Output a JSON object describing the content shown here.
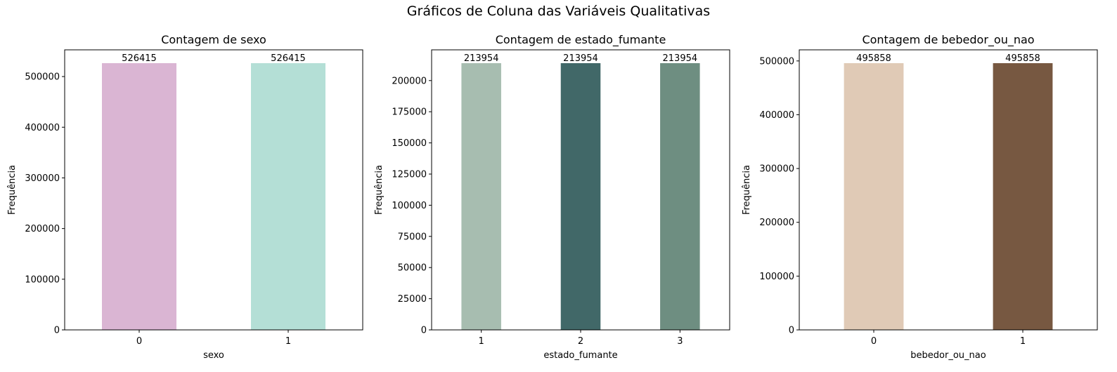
{
  "figure": {
    "suptitle": "Gráficos de Coluna das Variáveis Qualitativas"
  },
  "chart_data": [
    {
      "type": "bar",
      "title": "Contagem de sexo",
      "xlabel": "sexo",
      "ylabel": "Frequência",
      "categories": [
        "0",
        "1"
      ],
      "values": [
        526415,
        526415
      ],
      "data_labels": [
        "526415",
        "526415"
      ],
      "colors": [
        "#dab5d3",
        "#b4dfd6"
      ],
      "ylim": [
        0,
        552736
      ],
      "yticks": [
        0,
        100000,
        200000,
        300000,
        400000,
        500000
      ],
      "grid": false,
      "legend": "none"
    },
    {
      "type": "bar",
      "title": "Contagem de estado_fumante",
      "xlabel": "estado_fumante",
      "ylabel": "Frequência",
      "categories": [
        "1",
        "2",
        "3"
      ],
      "values": [
        213954,
        213954,
        213954
      ],
      "data_labels": [
        "213954",
        "213954",
        "213954"
      ],
      "colors": [
        "#a7bdb0",
        "#416868",
        "#6e8e81"
      ],
      "ylim": [
        0,
        224652
      ],
      "yticks": [
        0,
        25000,
        50000,
        75000,
        100000,
        125000,
        150000,
        175000,
        200000
      ],
      "grid": false,
      "legend": "none"
    },
    {
      "type": "bar",
      "title": "Contagem de bebedor_ou_nao",
      "xlabel": "bebedor_ou_nao",
      "ylabel": "Frequência",
      "categories": [
        "0",
        "1"
      ],
      "values": [
        495858,
        495858
      ],
      "data_labels": [
        "495858",
        "495858"
      ],
      "colors": [
        "#e0cab6",
        "#775841"
      ],
      "ylim": [
        0,
        520651
      ],
      "yticks": [
        0,
        100000,
        200000,
        300000,
        400000,
        500000
      ],
      "grid": false,
      "legend": "none"
    }
  ]
}
